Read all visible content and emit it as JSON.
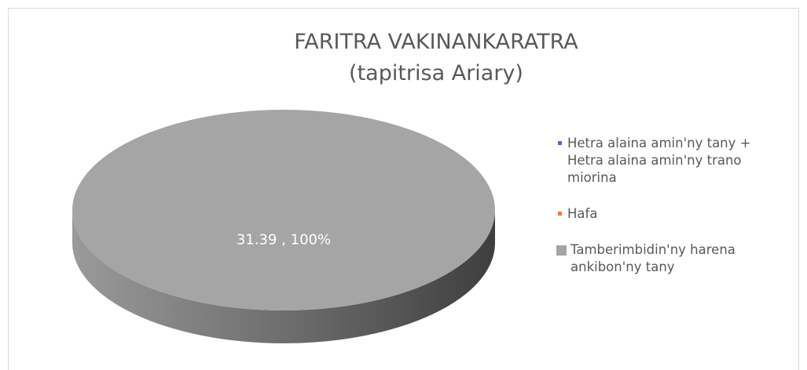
{
  "chart_data": {
    "type": "pie3d",
    "title": [
      "FARITRA VAKINANKARATRA",
      "(tapitrisa Ariary)"
    ],
    "categories": [
      "Hetra alaina amin'ny tany + Hetra alaina amin'ny trano miorina",
      "Hafa",
      "Tamberimbidin'ny harena ankibon'ny tany"
    ],
    "values": [
      0,
      0,
      31.39
    ],
    "value_labels": [
      null,
      null,
      "31.39 , 100%"
    ],
    "colors": [
      "#4472c4",
      "#ed7d31",
      "#a5a5a5"
    ],
    "legend": "right"
  }
}
